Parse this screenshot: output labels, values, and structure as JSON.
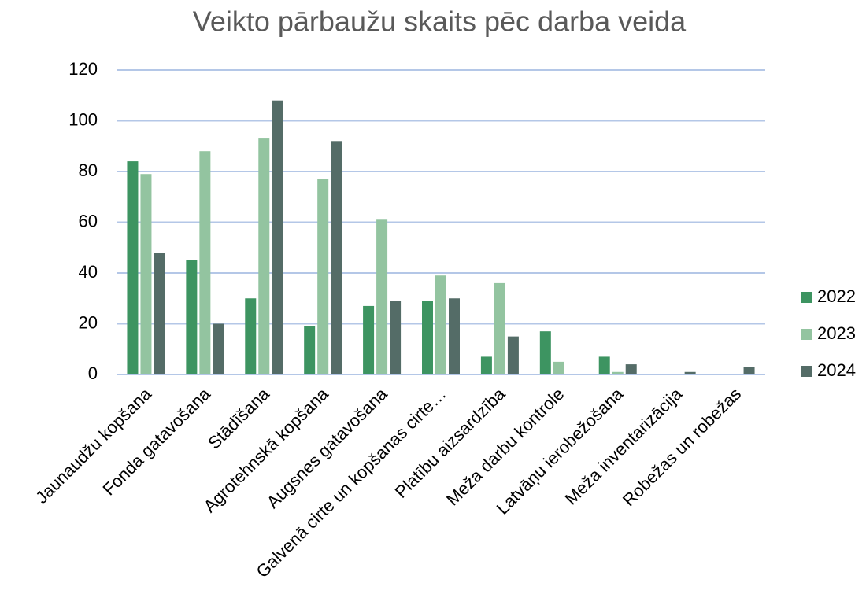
{
  "chart_data": {
    "type": "bar",
    "title": "Veikto pārbaužu skaits pēc darba veida",
    "categories": [
      "Jaunaudžu kopšana",
      "Fonda gatavošana",
      "Stādīšana",
      "Agrotehnskā kopšana",
      "Augsnes gatavošana",
      "Galvenā cirte un kopšanas cirte…",
      "Platību aizsardzība",
      "Meža darbu kontrole",
      "Latvāņu ierobežošana",
      "Meža inventarizācija",
      "Robežas un robežas"
    ],
    "series": [
      {
        "name": "2022",
        "color": "#3d9461",
        "values": [
          84,
          45,
          30,
          19,
          27,
          29,
          7,
          17,
          7,
          0,
          0
        ]
      },
      {
        "name": "2023",
        "color": "#93c4a0",
        "values": [
          79,
          88,
          93,
          77,
          61,
          39,
          36,
          5,
          1,
          0,
          0
        ]
      },
      {
        "name": "2024",
        "color": "#546c67",
        "values": [
          48,
          20,
          108,
          92,
          29,
          30,
          15,
          0,
          4,
          1,
          3
        ]
      }
    ],
    "ylim": [
      0,
      120
    ],
    "yticks": [
      0,
      20,
      40,
      60,
      80,
      100,
      120
    ],
    "grid": true,
    "legend": "right"
  }
}
